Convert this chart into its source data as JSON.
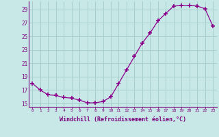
{
  "hours": [
    0,
    1,
    2,
    3,
    4,
    5,
    6,
    7,
    8,
    9,
    10,
    11,
    12,
    13,
    14,
    15,
    16,
    17,
    18,
    19,
    20,
    21,
    22,
    23
  ],
  "values": [
    18.0,
    17.0,
    16.3,
    16.2,
    15.9,
    15.8,
    15.5,
    15.1,
    15.1,
    15.3,
    16.0,
    18.0,
    20.0,
    22.0,
    24.0,
    25.5,
    27.3,
    28.4,
    29.5,
    29.6,
    29.6,
    29.5,
    29.1,
    26.5
  ],
  "line_color": "#8B008B",
  "marker": "+",
  "marker_color": "#8B008B",
  "background_color": "#c8e8e8",
  "grid_color": "#a8cece",
  "xlabel": "Windchill (Refroidissement éolien,°C)",
  "ylabel_ticks": [
    15,
    17,
    19,
    21,
    23,
    25,
    27,
    29
  ],
  "xlim": [
    -0.5,
    23.5
  ],
  "ylim": [
    14.5,
    30.2
  ],
  "tick_color": "#7B007B",
  "label_color": "#7B007B",
  "spine_color": "#7B007B"
}
